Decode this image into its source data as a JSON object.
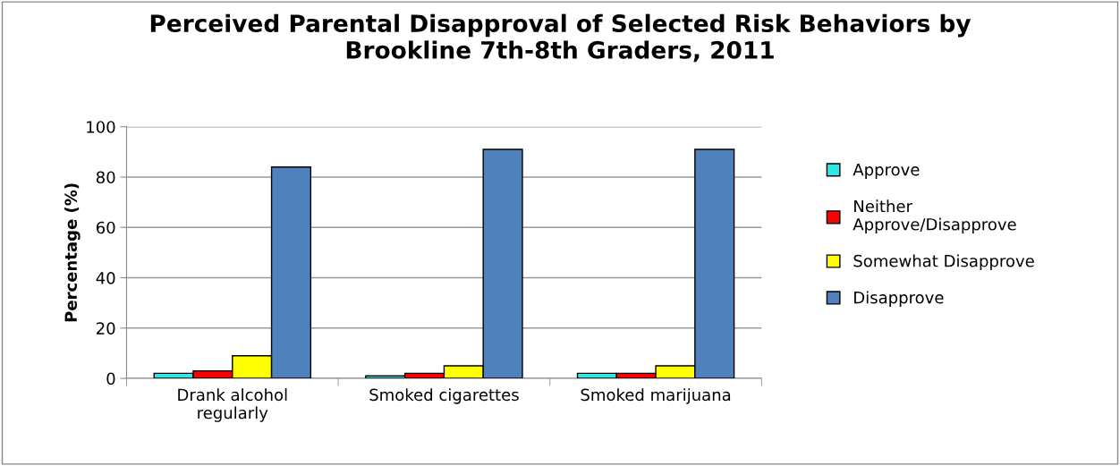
{
  "chart_data": {
    "type": "bar",
    "title": "Perceived Parental Disapproval of Selected Risk Behaviors by\nBrookline 7th-8th Graders, 2011",
    "ylabel": "Percentage (%)",
    "categories": [
      "Drank alcohol\nregularly",
      "Smoked cigarettes",
      "Smoked marijuana"
    ],
    "series": [
      {
        "name": "Approve",
        "color": "#33e6e6",
        "values": [
          2,
          1,
          2
        ]
      },
      {
        "name": "Neither\nApprove/Disapprove",
        "color": "#ff0000",
        "values": [
          3,
          2,
          2
        ]
      },
      {
        "name": "Somewhat Disapprove",
        "color": "#ffff00",
        "values": [
          9,
          5,
          5
        ]
      },
      {
        "name": "Disapprove",
        "color": "#4f81bd",
        "values": [
          84,
          91,
          91
        ]
      }
    ],
    "ylim": [
      0,
      100
    ],
    "yticks": [
      0,
      20,
      40,
      60,
      80,
      100
    ],
    "grid": "y",
    "legend": "right"
  }
}
